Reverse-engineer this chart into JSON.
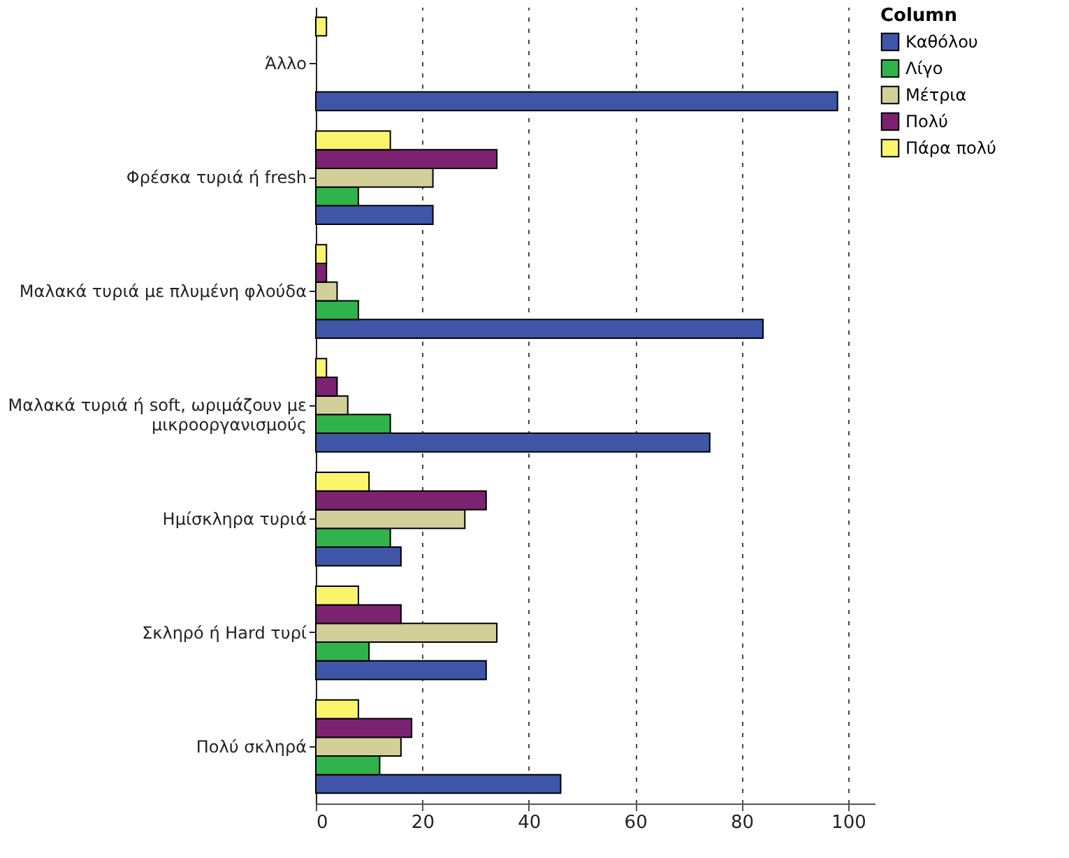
{
  "chart_data": {
    "type": "bar",
    "orientation": "horizontal",
    "legend_title": "Column",
    "categories": [
      "Άλλο",
      "Φρέσκα τυριά ή fresh",
      "Μαλακά τυριά με πλυμένη φλούδα",
      "Μαλακά τυριά ή soft, ωριμάζουν με μικροοργανισμούς",
      "Ημίσκληρα τυριά",
      "Σκληρό ή Hard τυρί",
      "Πολύ σκληρά"
    ],
    "series": [
      {
        "name": "Καθόλου",
        "color": "#3f56a8",
        "values": [
          98,
          22,
          84,
          74,
          16,
          32,
          46
        ]
      },
      {
        "name": "Λίγο",
        "color": "#2fb34a",
        "values": [
          null,
          8,
          8,
          14,
          14,
          10,
          12
        ]
      },
      {
        "name": "Μέτρια",
        "color": "#d3cf98",
        "values": [
          null,
          22,
          4,
          6,
          28,
          34,
          16
        ]
      },
      {
        "name": "Πολύ",
        "color": "#7b2370",
        "values": [
          null,
          34,
          2,
          4,
          32,
          16,
          18
        ]
      },
      {
        "name": "Πάρα πολύ",
        "color": "#fbf56e",
        "values": [
          2,
          14,
          2,
          2,
          10,
          8,
          8
        ]
      }
    ],
    "xlim": [
      0,
      105
    ],
    "xticks": [
      0,
      20,
      40,
      60,
      80,
      100
    ],
    "grid": "x",
    "legend": "top right"
  }
}
